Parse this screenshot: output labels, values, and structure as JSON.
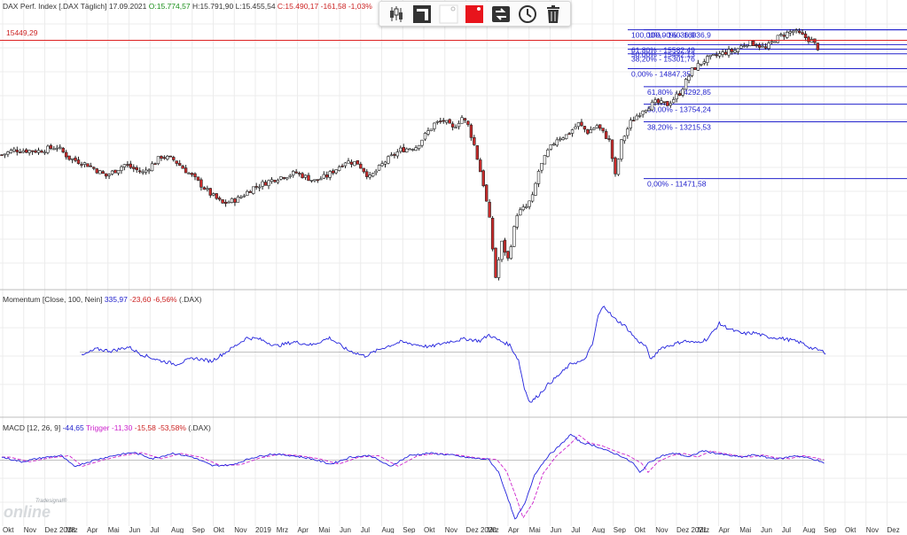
{
  "header": {
    "instrument": "DAX Perf. Index [.DAX Täglich] 17.09.2021",
    "open": "O:15.774,57",
    "high": "H:15.791,90",
    "low": "L:15.455,54",
    "close": "C:15.490,17",
    "change": "-161,58",
    "change_pct": "-1,03%",
    "price_line_label": "15449,29"
  },
  "toolbar": {
    "buttons": [
      "candlestick-icon",
      "bar-color-icon",
      "background-color-icon",
      "fill-color-icon",
      "move-icon",
      "clock-icon",
      "trash-icon"
    ]
  },
  "colors": {
    "candle_up": "#ffffff",
    "candle_down": "#cc2b2b",
    "wick": "#222222",
    "fib": "#2222cc",
    "momentum": "#2222dd",
    "macd": "#2222dd",
    "trigger": "#cc22cc",
    "price_line": "#dd2222",
    "grid": "#ececec",
    "positive": "#1a8f1a",
    "negative": "#cc2222"
  },
  "fibonacci": [
    {
      "text": "100,00% - 16036,9",
      "value": 16036.9
    },
    {
      "text": "61,80% - 15582,49",
      "value": 15582.49
    },
    {
      "text": "50,00% - 15442,13",
      "value": 15442.13
    },
    {
      "text": "38,20% - 15301,76",
      "value": 15301.76
    },
    {
      "text": "0,00% - 14847,35",
      "value": 14847.35
    },
    {
      "text": "100,00% - 16036,9",
      "value": 16036.9
    },
    {
      "text": "61,80% - 14292,85",
      "value": 14292.85
    },
    {
      "text": "50,00% - 13754,24",
      "value": 13754.24
    },
    {
      "text": "38,20% - 13215,53",
      "value": 13215.53
    },
    {
      "text": "0,00% - 11471,58",
      "value": 11471.58
    }
  ],
  "momentum": {
    "title": "Momentum [Close, 100, Nein]",
    "value": "335,97",
    "change": "-23,60",
    "change_pct": "-6,56%",
    "symbol": "(.DAX)"
  },
  "macd": {
    "title": "MACD [12, 26, 9]",
    "value": "-44,65",
    "trigger_label": "Trigger",
    "trigger": "-11,30",
    "change": "-15,58",
    "change_pct": "-53,58%",
    "symbol": "(.DAX)"
  },
  "logo": {
    "tag": "Tradesignal®",
    "word": "online"
  },
  "chart_data": {
    "type": "candlestick",
    "ylim": [
      8200,
      16300
    ],
    "x_tick_labels": [
      "Okt",
      "Nov",
      "Dez 2018",
      "Mrz",
      "Apr",
      "Mai",
      "Jun",
      "Jul",
      "Aug",
      "Sep",
      "Okt",
      "Nov",
      "2019",
      "Mrz",
      "Apr",
      "Mai",
      "Jun",
      "Jul",
      "Aug",
      "Sep",
      "Okt",
      "Nov",
      "Dez 2020",
      "Mrz",
      "Apr",
      "Mai",
      "Jun",
      "Jul",
      "Aug",
      "Sep",
      "Okt",
      "Nov",
      "Dez 2021",
      "Mrz",
      "Apr",
      "Mai",
      "Jun",
      "Jul",
      "Aug",
      "Sep",
      "Okt",
      "Nov",
      "Dez"
    ],
    "price_anchors": [
      {
        "t": 0,
        "v": 12200
      },
      {
        "t": 4,
        "v": 12350
      },
      {
        "t": 12,
        "v": 12320
      },
      {
        "t": 18,
        "v": 12450
      },
      {
        "t": 22,
        "v": 12100
      },
      {
        "t": 28,
        "v": 11900
      },
      {
        "t": 34,
        "v": 11550
      },
      {
        "t": 40,
        "v": 11900
      },
      {
        "t": 46,
        "v": 11650
      },
      {
        "t": 52,
        "v": 12150
      },
      {
        "t": 56,
        "v": 12050
      },
      {
        "t": 62,
        "v": 11550
      },
      {
        "t": 68,
        "v": 11000
      },
      {
        "t": 72,
        "v": 10700
      },
      {
        "t": 77,
        "v": 10850
      },
      {
        "t": 82,
        "v": 11200
      },
      {
        "t": 90,
        "v": 11500
      },
      {
        "t": 96,
        "v": 11650
      },
      {
        "t": 102,
        "v": 11400
      },
      {
        "t": 106,
        "v": 11550
      },
      {
        "t": 112,
        "v": 12000
      },
      {
        "t": 116,
        "v": 11950
      },
      {
        "t": 120,
        "v": 11500
      },
      {
        "t": 125,
        "v": 12000
      },
      {
        "t": 130,
        "v": 12350
      },
      {
        "t": 135,
        "v": 12450
      },
      {
        "t": 138,
        "v": 12800
      },
      {
        "t": 141,
        "v": 13150
      },
      {
        "t": 144,
        "v": 13250
      },
      {
        "t": 147,
        "v": 13000
      },
      {
        "t": 150,
        "v": 13350
      },
      {
        "t": 152,
        "v": 13100
      },
      {
        "t": 154,
        "v": 12500
      },
      {
        "t": 157,
        "v": 11300
      },
      {
        "t": 159,
        "v": 10200
      },
      {
        "t": 161,
        "v": 8450
      },
      {
        "t": 163,
        "v": 9500
      },
      {
        "t": 165,
        "v": 9000
      },
      {
        "t": 168,
        "v": 10400
      },
      {
        "t": 171,
        "v": 10600
      },
      {
        "t": 173,
        "v": 10900
      },
      {
        "t": 175,
        "v": 11700
      },
      {
        "t": 178,
        "v": 12300
      },
      {
        "t": 181,
        "v": 12700
      },
      {
        "t": 184,
        "v": 12800
      },
      {
        "t": 188,
        "v": 13150
      },
      {
        "t": 191,
        "v": 12900
      },
      {
        "t": 194,
        "v": 13100
      },
      {
        "t": 198,
        "v": 12650
      },
      {
        "t": 200,
        "v": 11550
      },
      {
        "t": 202,
        "v": 12600
      },
      {
        "t": 205,
        "v": 13200
      },
      {
        "t": 209,
        "v": 13600
      },
      {
        "t": 213,
        "v": 13800
      },
      {
        "t": 217,
        "v": 13750
      },
      {
        "t": 221,
        "v": 14100
      },
      {
        "t": 225,
        "v": 14800
      },
      {
        "t": 229,
        "v": 15100
      },
      {
        "t": 233,
        "v": 15250
      },
      {
        "t": 236,
        "v": 15350
      },
      {
        "t": 239,
        "v": 15400
      },
      {
        "t": 243,
        "v": 15650
      },
      {
        "t": 246,
        "v": 15600
      },
      {
        "t": 249,
        "v": 15450
      },
      {
        "t": 252,
        "v": 15750
      },
      {
        "t": 255,
        "v": 15900
      },
      {
        "t": 258,
        "v": 16000
      },
      {
        "t": 261,
        "v": 15850
      },
      {
        "t": 264,
        "v": 15700
      },
      {
        "t": 266,
        "v": 15490
      }
    ],
    "momentum_ylim": [
      -3000,
      2600
    ],
    "momentum_anchors": [
      {
        "t": 0,
        "v": -200
      },
      {
        "t": 5,
        "v": 150
      },
      {
        "t": 10,
        "v": 50
      },
      {
        "t": 16,
        "v": 250
      },
      {
        "t": 20,
        "v": -100
      },
      {
        "t": 26,
        "v": -400
      },
      {
        "t": 32,
        "v": -600
      },
      {
        "t": 38,
        "v": -300
      },
      {
        "t": 44,
        "v": -450
      },
      {
        "t": 50,
        "v": 100
      },
      {
        "t": 56,
        "v": 700
      },
      {
        "t": 60,
        "v": 650
      },
      {
        "t": 66,
        "v": 300
      },
      {
        "t": 72,
        "v": 500
      },
      {
        "t": 78,
        "v": 350
      },
      {
        "t": 84,
        "v": 700
      },
      {
        "t": 90,
        "v": 100
      },
      {
        "t": 96,
        "v": -200
      },
      {
        "t": 102,
        "v": 200
      },
      {
        "t": 108,
        "v": 500
      },
      {
        "t": 114,
        "v": 350
      },
      {
        "t": 118,
        "v": 250
      },
      {
        "t": 124,
        "v": 500
      },
      {
        "t": 130,
        "v": 650
      },
      {
        "t": 135,
        "v": 550
      },
      {
        "t": 138,
        "v": 850
      },
      {
        "t": 141,
        "v": 600
      },
      {
        "t": 145,
        "v": 350
      },
      {
        "t": 148,
        "v": -400
      },
      {
        "t": 150,
        "v": -1800
      },
      {
        "t": 152,
        "v": -2500
      },
      {
        "t": 155,
        "v": -2100
      },
      {
        "t": 158,
        "v": -1600
      },
      {
        "t": 162,
        "v": -1100
      },
      {
        "t": 166,
        "v": -550
      },
      {
        "t": 170,
        "v": -450
      },
      {
        "t": 173,
        "v": 350
      },
      {
        "t": 175,
        "v": 1800
      },
      {
        "t": 177,
        "v": 2300
      },
      {
        "t": 180,
        "v": 1700
      },
      {
        "t": 184,
        "v": 1300
      },
      {
        "t": 188,
        "v": 600
      },
      {
        "t": 191,
        "v": 300
      },
      {
        "t": 193,
        "v": -400
      },
      {
        "t": 196,
        "v": 200
      },
      {
        "t": 200,
        "v": 350
      },
      {
        "t": 204,
        "v": 550
      },
      {
        "t": 208,
        "v": 450
      },
      {
        "t": 212,
        "v": 650
      },
      {
        "t": 216,
        "v": 1400
      },
      {
        "t": 220,
        "v": 1100
      },
      {
        "t": 224,
        "v": 900
      },
      {
        "t": 228,
        "v": 950
      },
      {
        "t": 232,
        "v": 750
      },
      {
        "t": 236,
        "v": 700
      },
      {
        "t": 240,
        "v": 600
      },
      {
        "t": 244,
        "v": 450
      },
      {
        "t": 247,
        "v": 200
      },
      {
        "t": 250,
        "v": 80
      },
      {
        "t": 252,
        "v": -20
      }
    ],
    "macd_ylim": [
      -820,
      380
    ],
    "macd_anchors": [
      {
        "t": 0,
        "v": 40
      },
      {
        "t": 6,
        "v": -20
      },
      {
        "t": 12,
        "v": 30
      },
      {
        "t": 18,
        "v": 60
      },
      {
        "t": 22,
        "v": -80
      },
      {
        "t": 28,
        "v": 0
      },
      {
        "t": 34,
        "v": 60
      },
      {
        "t": 40,
        "v": 100
      },
      {
        "t": 46,
        "v": 20
      },
      {
        "t": 52,
        "v": 90
      },
      {
        "t": 58,
        "v": 40
      },
      {
        "t": 64,
        "v": -70
      },
      {
        "t": 70,
        "v": -60
      },
      {
        "t": 76,
        "v": 30
      },
      {
        "t": 82,
        "v": 80
      },
      {
        "t": 88,
        "v": 60
      },
      {
        "t": 94,
        "v": 20
      },
      {
        "t": 100,
        "v": -50
      },
      {
        "t": 106,
        "v": 40
      },
      {
        "t": 112,
        "v": 60
      },
      {
        "t": 118,
        "v": -80
      },
      {
        "t": 124,
        "v": 60
      },
      {
        "t": 130,
        "v": 90
      },
      {
        "t": 136,
        "v": 70
      },
      {
        "t": 142,
        "v": 30
      },
      {
        "t": 148,
        "v": 10
      },
      {
        "t": 151,
        "v": -150
      },
      {
        "t": 154,
        "v": -500
      },
      {
        "t": 156,
        "v": -760
      },
      {
        "t": 159,
        "v": -560
      },
      {
        "t": 162,
        "v": -180
      },
      {
        "t": 166,
        "v": 50
      },
      {
        "t": 170,
        "v": 200
      },
      {
        "t": 173,
        "v": 330
      },
      {
        "t": 176,
        "v": 230
      },
      {
        "t": 180,
        "v": 190
      },
      {
        "t": 184,
        "v": 120
      },
      {
        "t": 188,
        "v": 60
      },
      {
        "t": 192,
        "v": -40
      },
      {
        "t": 194,
        "v": -160
      },
      {
        "t": 197,
        "v": -20
      },
      {
        "t": 201,
        "v": 60
      },
      {
        "t": 205,
        "v": 90
      },
      {
        "t": 209,
        "v": 40
      },
      {
        "t": 213,
        "v": 120
      },
      {
        "t": 217,
        "v": 90
      },
      {
        "t": 221,
        "v": 60
      },
      {
        "t": 225,
        "v": 40
      },
      {
        "t": 229,
        "v": 70
      },
      {
        "t": 233,
        "v": 30
      },
      {
        "t": 237,
        "v": 20
      },
      {
        "t": 241,
        "v": 60
      },
      {
        "t": 245,
        "v": 30
      },
      {
        "t": 248,
        "v": 0
      },
      {
        "t": 250,
        "v": -44.65
      }
    ]
  }
}
